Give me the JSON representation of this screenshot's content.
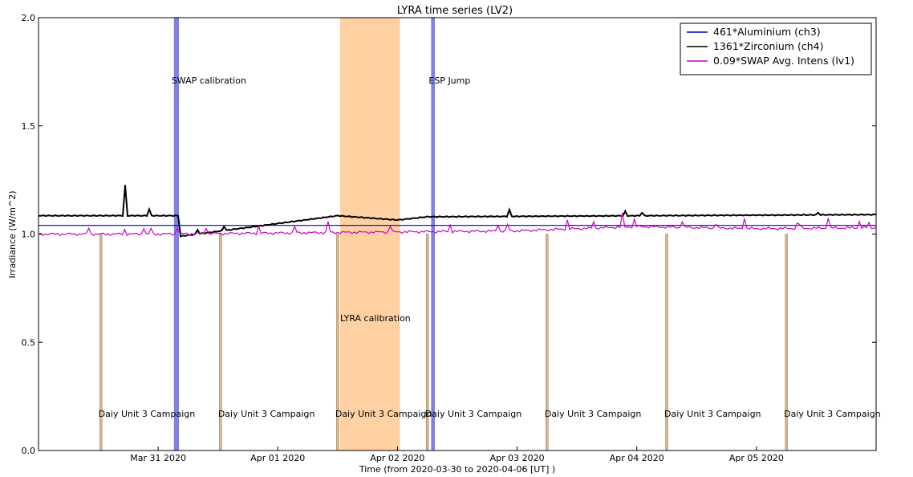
{
  "chart_data": {
    "type": "line",
    "title": "LYRA time series (LV2)",
    "xlabel": "Time (from 2020-03-30 to 2020-04-06 [UT] )",
    "ylabel": "Irradiance (W/m^2)",
    "xlim": [
      "2020-03-30T00:00",
      "2020-04-06T00:00"
    ],
    "ylim": [
      0.0,
      2.0
    ],
    "x_ticks": [
      "Mar 31 2020",
      "Apr 01 2020",
      "Apr 02 2020",
      "Apr 03 2020",
      "Apr 04 2020",
      "Apr 05 2020"
    ],
    "y_ticks": [
      "0.0",
      "0.5",
      "1.0",
      "1.5",
      "2.0"
    ],
    "grid": false,
    "legend_position": "top-right",
    "series": [
      {
        "name": "461*Aluminium (ch3)",
        "color": "#0000cc",
        "x": [
          "2020-03-30T00:00",
          "2020-04-06T00:00"
        ],
        "y": [
          1.04,
          1.04
        ]
      },
      {
        "name": "1361*Zirconium (ch4)",
        "color": "#000000",
        "x": [
          "2020-03-30T00:00",
          "2020-03-31T04:00",
          "2020-03-31T04:30",
          "2020-04-01T12:00",
          "2020-04-02T00:00",
          "2020-04-02T06:00",
          "2020-04-06T00:00"
        ],
        "y": [
          1.085,
          1.085,
          0.99,
          1.085,
          1.065,
          1.08,
          1.09
        ]
      },
      {
        "name": "0.09*SWAP Avg. Intens (lv1)",
        "color": "#cc00cc",
        "x": [
          "2020-03-30T00:00",
          "2020-03-31T00:00",
          "2020-04-01T00:00",
          "2020-04-02T00:00",
          "2020-04-03T00:00",
          "2020-04-04T00:00",
          "2020-04-05T00:00",
          "2020-04-06T00:00"
        ],
        "y": [
          1.0,
          1.0,
          1.005,
          1.01,
          1.015,
          1.035,
          1.025,
          1.03
        ]
      }
    ],
    "shaded_regions": [
      {
        "label": "SWAP calibration",
        "start": "2020-03-31T03:10",
        "end": "2020-03-31T04:10",
        "color": "#6b6bdd"
      },
      {
        "label": "LYRA calibration",
        "start": "2020-04-01T12:30",
        "end": "2020-04-02T00:30",
        "color": "#ffc891"
      },
      {
        "label": "ESP Jump",
        "start": "2020-04-02T06:45",
        "end": "2020-04-02T07:30",
        "color": "#6b6bdd"
      }
    ],
    "campaigns": {
      "label": "Daiy Unit 3 Campaign",
      "color": "#d9b48a",
      "times": [
        "2020-03-30T12:30",
        "2020-03-31T12:30",
        "2020-04-01T12:00",
        "2020-04-02T06:00",
        "2020-04-03T06:00",
        "2020-04-04T06:00",
        "2020-04-05T06:00"
      ]
    }
  }
}
